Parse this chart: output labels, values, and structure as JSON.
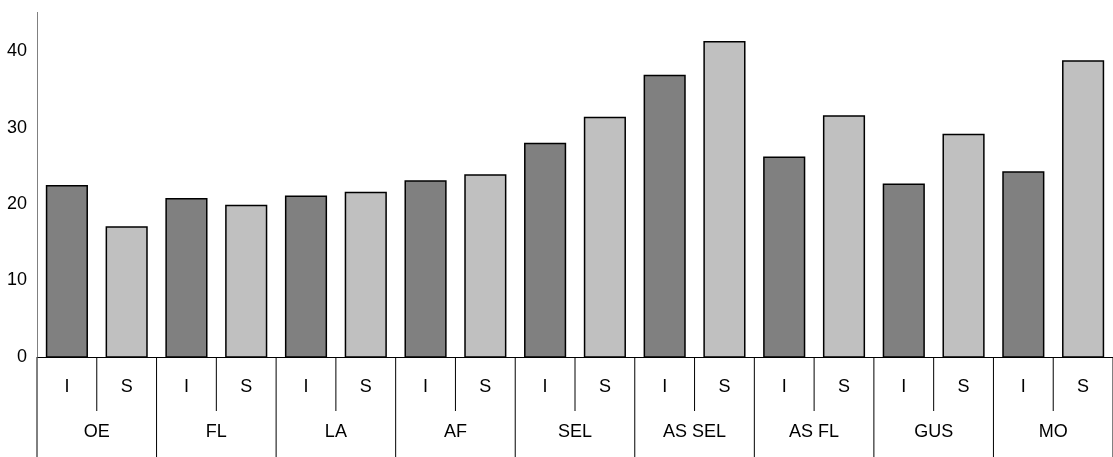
{
  "chart_data": {
    "type": "bar",
    "categories": [
      "OE",
      "FL",
      "LA",
      "AF",
      "SEL",
      "AS SEL",
      "AS FL",
      "GUS",
      "MO"
    ],
    "series": [
      {
        "name": "I",
        "color": "#808080",
        "values": [
          22.4,
          20.7,
          21.0,
          23.0,
          27.9,
          36.8,
          26.1,
          22.6,
          24.2
        ]
      },
      {
        "name": "S",
        "color": "#c0c0c0",
        "values": [
          17.0,
          19.8,
          21.5,
          23.8,
          31.3,
          41.2,
          31.5,
          29.1,
          38.7
        ]
      }
    ],
    "ylim": [
      0,
      45
    ],
    "yticks": [
      0,
      10,
      20,
      30,
      40
    ],
    "grid": false,
    "legend": false
  }
}
